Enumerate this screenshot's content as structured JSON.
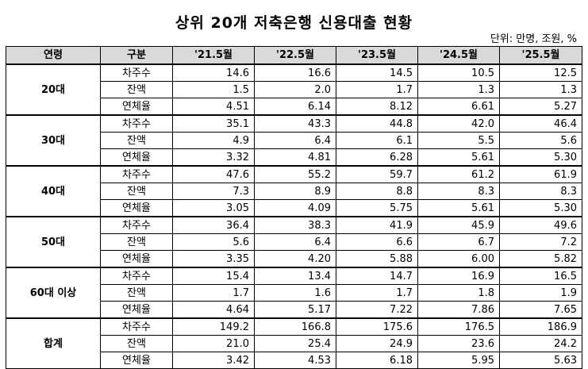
{
  "title": "상위 20개 저축은행 신용대출 현황",
  "unit": "단위: 만명, 조원, %",
  "headers": [
    "연령",
    "구분",
    "'21.5월",
    "'22.5월",
    "'23.5월",
    "'24.5월",
    "'25.5월"
  ],
  "groups": [
    {
      "age": "20대",
      "rows": [
        {
          "cat": "차주수",
          "v": [
            "14.6",
            "16.6",
            "14.5",
            "10.5",
            "12.5"
          ]
        },
        {
          "cat": "잔액",
          "v": [
            "1.5",
            "2.0",
            "1.7",
            "1.3",
            "1.3"
          ]
        },
        {
          "cat": "연체율",
          "v": [
            "4.51",
            "6.14",
            "8.12",
            "6.61",
            "5.27"
          ]
        }
      ]
    },
    {
      "age": "30대",
      "rows": [
        {
          "cat": "차주수",
          "v": [
            "35.1",
            "43.3",
            "44.8",
            "42.0",
            "46.4"
          ]
        },
        {
          "cat": "잔액",
          "v": [
            "4.9",
            "6.4",
            "6.1",
            "5.5",
            "5.6"
          ]
        },
        {
          "cat": "연체율",
          "v": [
            "3.32",
            "4.81",
            "6.28",
            "5.61",
            "5.30"
          ]
        }
      ]
    },
    {
      "age": "40대",
      "rows": [
        {
          "cat": "차주수",
          "v": [
            "47.6",
            "55.2",
            "59.7",
            "61.2",
            "61.9"
          ]
        },
        {
          "cat": "잔액",
          "v": [
            "7.3",
            "8.9",
            "8.8",
            "8.3",
            "8.3"
          ]
        },
        {
          "cat": "연체율",
          "v": [
            "3.05",
            "4.09",
            "5.75",
            "5.61",
            "5.30"
          ]
        }
      ]
    },
    {
      "age": "50대",
      "rows": [
        {
          "cat": "차주수",
          "v": [
            "36.4",
            "38.3",
            "41.9",
            "45.9",
            "49.6"
          ]
        },
        {
          "cat": "잔액",
          "v": [
            "5.6",
            "6.4",
            "6.6",
            "6.7",
            "7.2"
          ]
        },
        {
          "cat": "연체율",
          "v": [
            "3.35",
            "4.20",
            "5.88",
            "6.00",
            "5.82"
          ]
        }
      ]
    },
    {
      "age": "60대 이상",
      "rows": [
        {
          "cat": "차주수",
          "v": [
            "15.4",
            "13.4",
            "14.7",
            "16.9",
            "16.5"
          ]
        },
        {
          "cat": "잔액",
          "v": [
            "1.7",
            "1.6",
            "1.7",
            "1.8",
            "1.9"
          ]
        },
        {
          "cat": "연체율",
          "v": [
            "4.64",
            "5.17",
            "7.22",
            "7.86",
            "7.65"
          ]
        }
      ]
    },
    {
      "age": "합계",
      "rows": [
        {
          "cat": "차주수",
          "v": [
            "149.2",
            "166.8",
            "175.6",
            "176.5",
            "186.9"
          ]
        },
        {
          "cat": "잔액",
          "v": [
            "21.0",
            "25.4",
            "24.9",
            "23.6",
            "24.2"
          ]
        },
        {
          "cat": "연체율",
          "v": [
            "3.42",
            "4.53",
            "6.18",
            "5.95",
            "5.63"
          ]
        }
      ]
    }
  ]
}
